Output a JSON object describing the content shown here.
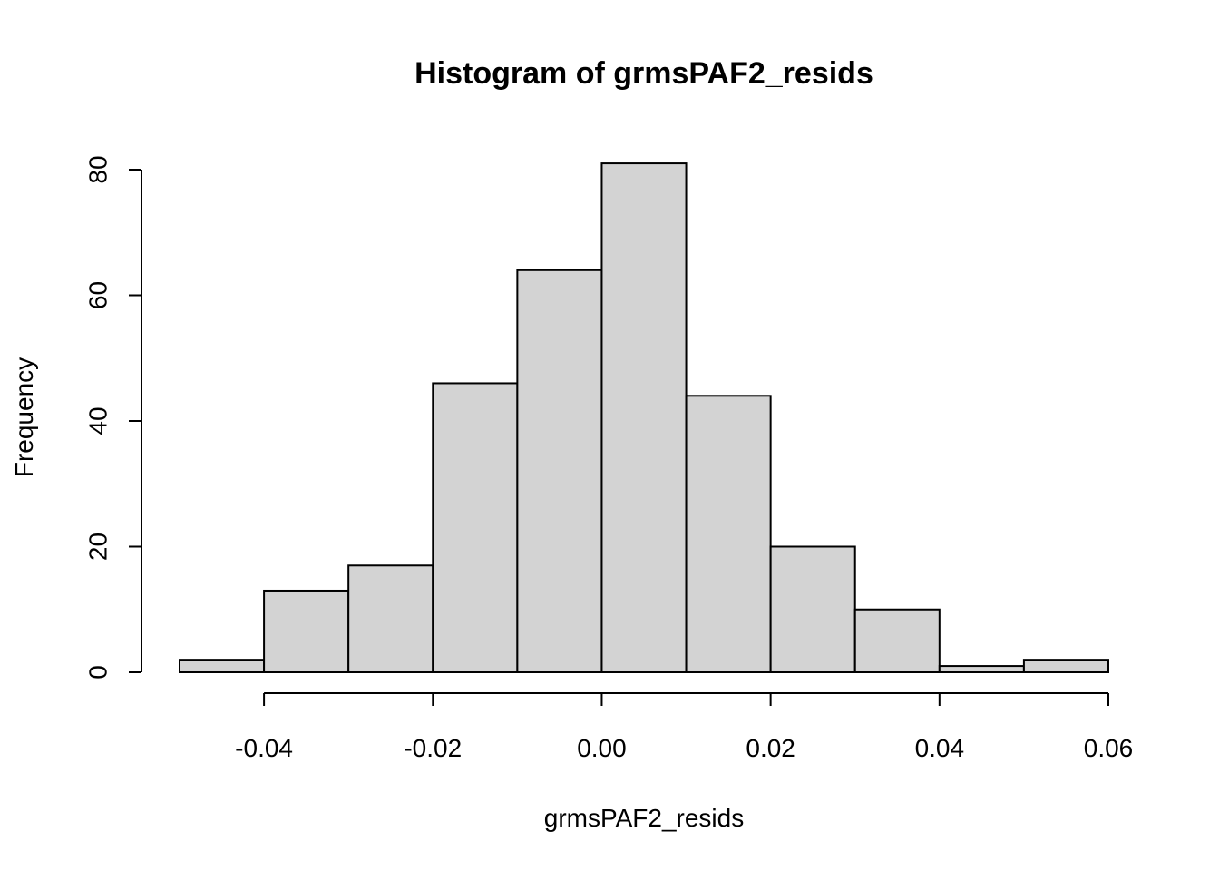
{
  "chart_data": {
    "type": "bar",
    "title": "Histogram of grmsPAF2_resids",
    "xlabel": "grmsPAF2_resids",
    "ylabel": "Frequency",
    "bins": [
      {
        "start": -0.05,
        "end": -0.04,
        "count": 2
      },
      {
        "start": -0.04,
        "end": -0.03,
        "count": 13
      },
      {
        "start": -0.03,
        "end": -0.02,
        "count": 17
      },
      {
        "start": -0.02,
        "end": -0.01,
        "count": 46
      },
      {
        "start": -0.01,
        "end": 0.0,
        "count": 64
      },
      {
        "start": 0.0,
        "end": 0.01,
        "count": 81
      },
      {
        "start": 0.01,
        "end": 0.02,
        "count": 44
      },
      {
        "start": 0.02,
        "end": 0.03,
        "count": 20
      },
      {
        "start": 0.03,
        "end": 0.04,
        "count": 10
      },
      {
        "start": 0.04,
        "end": 0.05,
        "count": 1
      },
      {
        "start": 0.05,
        "end": 0.06,
        "count": 2
      }
    ],
    "xlim": [
      -0.05,
      0.06
    ],
    "ylim": [
      0,
      81
    ],
    "x_ticks": [
      {
        "value": -0.04,
        "label": "-0.04"
      },
      {
        "value": -0.02,
        "label": "-0.02"
      },
      {
        "value": 0.0,
        "label": "0.00"
      },
      {
        "value": 0.02,
        "label": "0.02"
      },
      {
        "value": 0.04,
        "label": "0.04"
      },
      {
        "value": 0.06,
        "label": "0.06"
      }
    ],
    "y_ticks": [
      {
        "value": 0,
        "label": "0"
      },
      {
        "value": 20,
        "label": "20"
      },
      {
        "value": 40,
        "label": "40"
      },
      {
        "value": 60,
        "label": "60"
      },
      {
        "value": 80,
        "label": "80"
      }
    ],
    "grid": false,
    "bar_fill": "#d3d3d3",
    "bar_stroke": "#000000"
  }
}
